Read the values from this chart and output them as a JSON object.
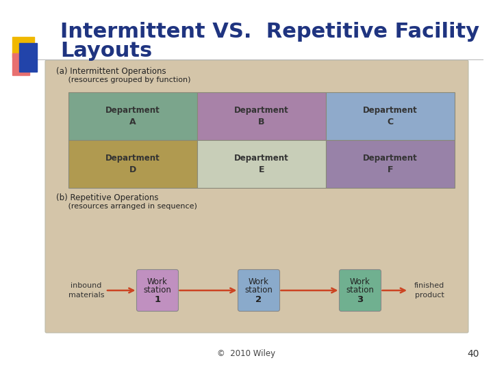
{
  "title_line1": "Intermittent VS.  Repetitive Facility",
  "title_line2": "Layouts",
  "title_color": "#1F3480",
  "title_fontsize": 22,
  "bg_color": "#ffffff",
  "diagram_bg": "#D4C5A9",
  "section_a_label": "(a) Intermittent Operations",
  "section_a_sub": "     (resources grouped by function)",
  "section_b_label": "(b) Repetitive Operations",
  "section_b_sub": "     (resources arranged in sequence)",
  "dept_colors": {
    "A": "#7BA58C",
    "B": "#A882A8",
    "C": "#8FAACB",
    "D": "#B09A50",
    "E": "#C8CEB8",
    "F": "#9882A8"
  },
  "ws_colors": {
    "1": "#C090C0",
    "2": "#8AAACB",
    "3": "#70B090"
  },
  "arrow_color": "#CC4422",
  "footer_text": "©  2010 Wiley",
  "page_num": "40",
  "label_color": "#333333",
  "dept_text_color": "#333333"
}
